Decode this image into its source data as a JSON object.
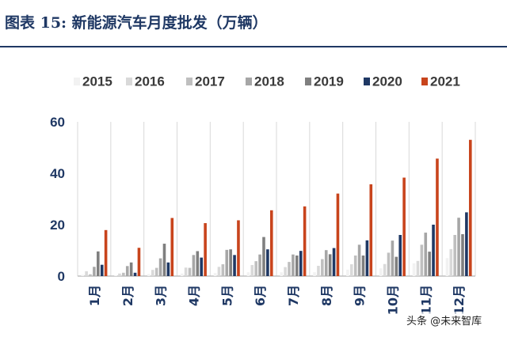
{
  "title": "图表 15:  新能源汽车月度批发（万辆）",
  "watermark": "头条 @未来智库",
  "colors": {
    "title": "#1f3864",
    "series": [
      "#f2f2f2",
      "#d9d9d9",
      "#bfbfbf",
      "#a6a6a6",
      "#7f7f7f",
      "#1f3864",
      "#c8441c"
    ],
    "grid": "#d9d9d9"
  },
  "chart_data": {
    "type": "bar",
    "categories": [
      "1月",
      "2月",
      "3月",
      "4月",
      "5月",
      "6月",
      "7月",
      "8月",
      "9月",
      "10月",
      "11月",
      "12月"
    ],
    "series": [
      {
        "name": "2015",
        "values": [
          0.5,
          0.3,
          0.8,
          1.0,
          1.2,
          1.5,
          1.5,
          1.5,
          2.5,
          3.0,
          5.0,
          7.0
        ]
      },
      {
        "name": "2016",
        "values": [
          1.9,
          1.0,
          2.4,
          3.3,
          3.6,
          4.3,
          3.5,
          4.0,
          4.6,
          4.7,
          5.9,
          10.5
        ]
      },
      {
        "name": "2017",
        "values": [
          0.7,
          1.3,
          3.2,
          3.2,
          4.6,
          5.8,
          5.5,
          6.6,
          8.0,
          9.1,
          12.2,
          16.0
        ]
      },
      {
        "name": "2018",
        "values": [
          3.6,
          3.9,
          6.9,
          8.2,
          10.2,
          8.4,
          8.4,
          10.1,
          12.2,
          13.8,
          16.9,
          22.7
        ]
      },
      {
        "name": "2019",
        "values": [
          9.6,
          5.3,
          12.6,
          9.7,
          10.4,
          15.2,
          8.0,
          8.5,
          8.0,
          7.5,
          9.5,
          16.3
        ]
      },
      {
        "name": "2020",
        "values": [
          4.4,
          1.3,
          5.3,
          7.2,
          8.2,
          10.4,
          9.8,
          10.9,
          13.9,
          16.0,
          20.0,
          24.8
        ]
      },
      {
        "name": "2021",
        "values": [
          17.9,
          11.0,
          22.6,
          20.6,
          21.7,
          25.6,
          27.1,
          32.1,
          35.7,
          38.3,
          45.7,
          53.0
        ]
      }
    ],
    "ylim": [
      0,
      60
    ],
    "yticks": [
      0,
      20,
      40,
      60
    ],
    "grid": false,
    "legend": "top"
  }
}
